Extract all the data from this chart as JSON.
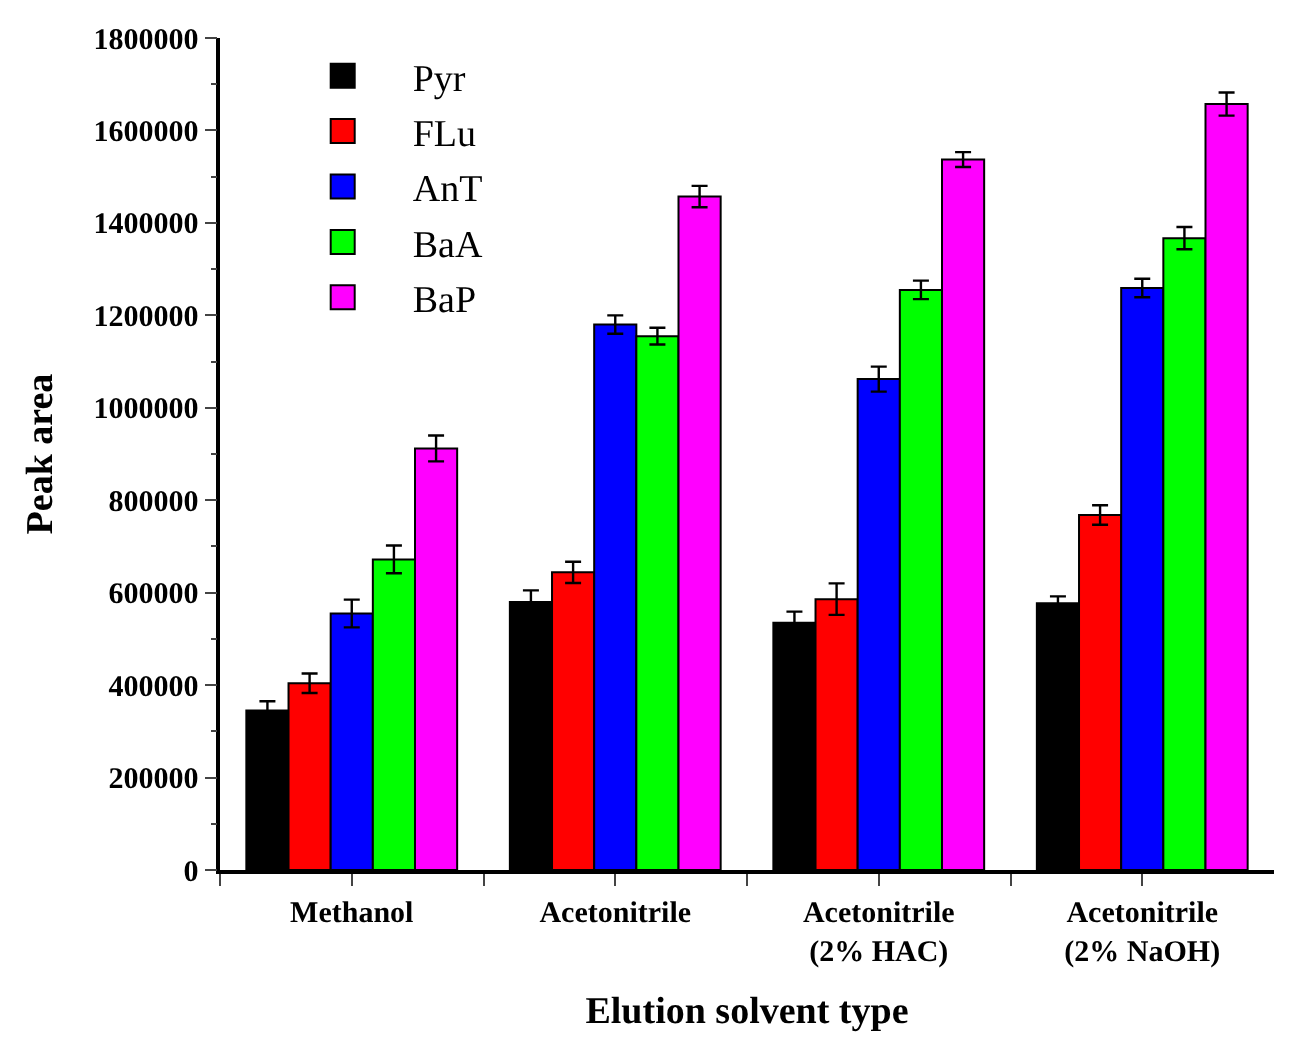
{
  "chart_data": {
    "type": "bar",
    "xlabel": "Elution solvent type",
    "ylabel": "Peak area",
    "categories": [
      "Methanol",
      "Acetonitrile",
      "Acetonitrile\n(2% HAC)",
      "Acetonitrile\n(2% NaOH)"
    ],
    "series": [
      {
        "name": "Pyr",
        "color": "#000000",
        "values": [
          345000,
          580000,
          535000,
          577000
        ],
        "errors": [
          20000,
          25000,
          24000,
          15000
        ]
      },
      {
        "name": "FLu",
        "color": "#ff0000",
        "values": [
          404000,
          644000,
          586000,
          768000
        ],
        "errors": [
          21000,
          23000,
          34000,
          21000
        ]
      },
      {
        "name": "AnT",
        "color": "#0000ff",
        "values": [
          555000,
          1180000,
          1062000,
          1259000
        ],
        "errors": [
          30000,
          20000,
          27000,
          20000
        ]
      },
      {
        "name": "BaA",
        "color": "#00ff00",
        "values": [
          672000,
          1155000,
          1255000,
          1367000
        ],
        "errors": [
          30000,
          18000,
          20000,
          24000
        ]
      },
      {
        "name": "BaP",
        "color": "#ff00ff",
        "values": [
          912000,
          1457000,
          1537000,
          1657000
        ],
        "errors": [
          28000,
          23000,
          16000,
          25000
        ]
      }
    ],
    "ylim": [
      0,
      1800000
    ],
    "yticks": [
      0,
      200000,
      400000,
      600000,
      800000,
      1000000,
      1200000,
      1400000,
      1600000,
      1800000
    ],
    "legend": "top left"
  }
}
